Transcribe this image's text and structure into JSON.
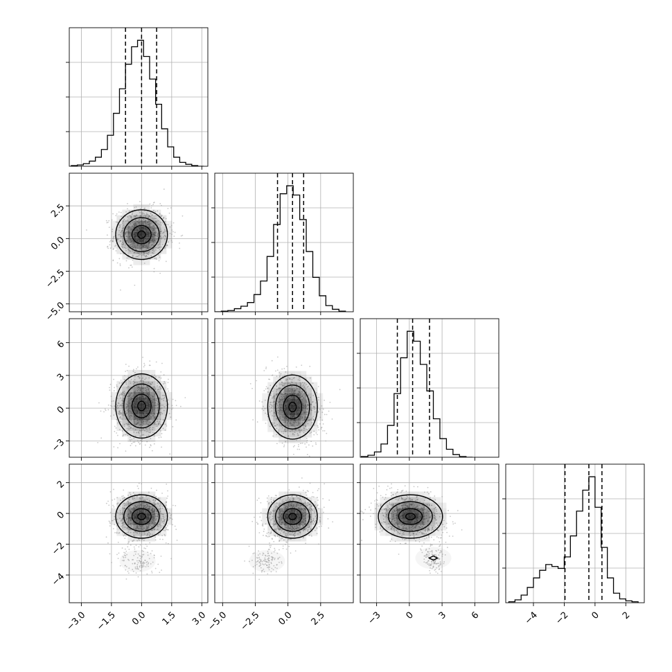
{
  "chart_data": {
    "type": "corner",
    "title": "",
    "parameters": [
      "",
      "",
      "",
      ""
    ],
    "grid": true,
    "colors": {
      "line": "#000000",
      "grid": "#b0b0b0",
      "scatter": "#9a9a9a",
      "density": "#000000"
    },
    "axes": [
      {
        "range": [
          -3.6,
          3.3
        ],
        "ticks": [
          -3.0,
          -1.5,
          0.0,
          1.5,
          3.0
        ],
        "tick_labels": [
          "−3.0",
          "−1.5",
          "0.0",
          "1.5",
          "3.0"
        ],
        "quantiles": [
          -0.8,
          0.0,
          0.75
        ],
        "hist_bins": [
          -3.5,
          -3.2,
          -2.9,
          -2.6,
          -2.3,
          -2.0,
          -1.7,
          -1.4,
          -1.1,
          -0.8,
          -0.5,
          -0.2,
          0.1,
          0.4,
          0.7,
          1.0,
          1.3,
          1.6,
          1.9,
          2.2,
          2.5,
          2.8,
          3.1
        ],
        "hist_counts": [
          1,
          2,
          4,
          8,
          14,
          26,
          48,
          82,
          120,
          158,
          185,
          195,
          170,
          135,
          96,
          58,
          30,
          14,
          6,
          3,
          1,
          0
        ]
      },
      {
        "range": [
          -5.6,
          5.0
        ],
        "ticks": [
          -5.0,
          -2.5,
          0.0,
          2.5
        ],
        "tick_labels": [
          "−5.0",
          "−2.5",
          "0.0",
          "2.5"
        ],
        "quantiles": [
          -0.8,
          0.35,
          1.2
        ],
        "hist_bins": [
          -5.6,
          -5.1,
          -4.6,
          -4.1,
          -3.6,
          -3.1,
          -2.6,
          -2.1,
          -1.6,
          -1.1,
          -0.6,
          -0.1,
          0.4,
          0.9,
          1.4,
          1.9,
          2.4,
          2.9,
          3.4,
          3.9,
          4.4
        ],
        "hist_counts": [
          0,
          1,
          2,
          5,
          9,
          15,
          28,
          50,
          90,
          142,
          192,
          205,
          190,
          150,
          98,
          56,
          26,
          10,
          4,
          1
        ]
      },
      {
        "range": [
          -4.5,
          8.2
        ],
        "ticks": [
          -3,
          0,
          3,
          6
        ],
        "tick_labels": [
          "−3",
          "0",
          "3",
          "6"
        ],
        "quantiles": [
          -1.1,
          0.3,
          1.85
        ],
        "hist_bins": [
          -4.4,
          -3.8,
          -3.2,
          -2.6,
          -2.0,
          -1.4,
          -0.8,
          -0.2,
          0.4,
          1.0,
          1.6,
          2.2,
          2.8,
          3.4,
          4.0,
          4.6,
          5.2,
          5.8
        ],
        "hist_counts": [
          1,
          3,
          8,
          20,
          48,
          96,
          150,
          190,
          175,
          140,
          100,
          58,
          28,
          12,
          4,
          1,
          0
        ]
      },
      {
        "range": [
          -5.8,
          3.2
        ],
        "ticks": [
          -4,
          -2,
          0,
          2
        ],
        "tick_labels": [
          "−4",
          "−2",
          "0",
          "2"
        ],
        "quantiles": [
          -1.95,
          -0.4,
          0.45
        ],
        "hist_bins": [
          -5.6,
          -5.2,
          -4.8,
          -4.4,
          -4.0,
          -3.6,
          -3.2,
          -2.8,
          -2.4,
          -2.0,
          -1.6,
          -1.2,
          -0.8,
          -0.4,
          0.0,
          0.4,
          0.8,
          1.2,
          1.6,
          2.0,
          2.4,
          2.8
        ],
        "hist_counts": [
          1,
          3,
          8,
          16,
          26,
          34,
          40,
          38,
          36,
          48,
          70,
          96,
          118,
          132,
          100,
          58,
          26,
          10,
          4,
          2,
          1
        ]
      }
    ],
    "pairs": [
      {
        "row": 1,
        "col": 0,
        "cov": [
          [
            0.46,
            0.02
          ],
          [
            0.02,
            1.0
          ]
        ],
        "mean": [
          0.0,
          0.3
        ],
        "tail": null
      },
      {
        "row": 2,
        "col": 0,
        "cov": [
          [
            0.46,
            0.02
          ],
          [
            0.02,
            2.4
          ]
        ],
        "mean": [
          0.0,
          0.2
        ],
        "tail": null
      },
      {
        "row": 2,
        "col": 1,
        "cov": [
          [
            1.0,
            -0.45
          ],
          [
            -0.45,
            2.4
          ]
        ],
        "mean": [
          0.35,
          0.1
        ],
        "tail": null
      },
      {
        "row": 3,
        "col": 0,
        "cov": [
          [
            0.46,
            0.0
          ],
          [
            0.0,
            0.55
          ]
        ],
        "mean": [
          0.0,
          -0.2
        ],
        "tail": [
          -0.2,
          -3.1
        ]
      },
      {
        "row": 3,
        "col": 1,
        "cov": [
          [
            1.0,
            0.1
          ],
          [
            0.1,
            0.55
          ]
        ],
        "mean": [
          0.35,
          -0.2
        ],
        "tail": [
          -1.6,
          -3.1
        ]
      },
      {
        "row": 3,
        "col": 2,
        "cov": [
          [
            2.4,
            -0.25
          ],
          [
            -0.25,
            0.55
          ]
        ],
        "mean": [
          0.1,
          -0.2
        ],
        "tail": [
          2.2,
          -2.9
        ]
      }
    ]
  }
}
